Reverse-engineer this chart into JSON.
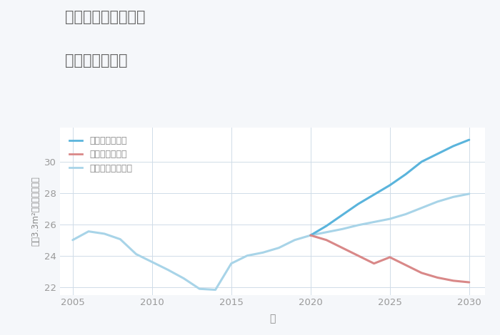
{
  "title_line1": "兵庫県宝塚市玉瀬の",
  "title_line2": "土地の価格推移",
  "xlabel": "年",
  "ylabel": "坪（3.3m²）単価（万円）",
  "background_color": "#f5f7fa",
  "plot_background": "#ffffff",
  "grid_color": "#d0dce8",
  "title_color": "#666666",
  "axis_color": "#888888",
  "tick_color": "#999999",
  "historical_years": [
    2005,
    2006,
    2007,
    2008,
    2009,
    2010,
    2011,
    2012,
    2013,
    2014,
    2015,
    2016,
    2017,
    2018,
    2019,
    2020
  ],
  "historical_values": [
    25.0,
    25.55,
    25.4,
    25.05,
    24.1,
    23.6,
    23.1,
    22.55,
    21.88,
    21.82,
    23.5,
    24.0,
    24.2,
    24.5,
    25.0,
    25.3
  ],
  "future_years": [
    2020,
    2021,
    2022,
    2023,
    2024,
    2025,
    2026,
    2027,
    2028,
    2029,
    2030
  ],
  "good_values": [
    25.3,
    25.9,
    26.6,
    27.3,
    27.9,
    28.5,
    29.2,
    30.0,
    30.5,
    31.0,
    31.4
  ],
  "bad_values": [
    25.3,
    25.0,
    24.5,
    24.0,
    23.5,
    23.9,
    23.4,
    22.9,
    22.6,
    22.4,
    22.3
  ],
  "normal_values": [
    25.3,
    25.5,
    25.7,
    25.95,
    26.15,
    26.35,
    26.65,
    27.05,
    27.45,
    27.75,
    27.95
  ],
  "good_color": "#5ab4dc",
  "bad_color": "#d98888",
  "normal_color": "#a8d4e8",
  "hist_color": "#a8d4e8",
  "legend_labels": [
    "グッドシナリオ",
    "バッドシナリオ",
    "ノーマルシナリオ"
  ],
  "ylim": [
    21.5,
    32.2
  ],
  "xlim": [
    2004.2,
    2031.0
  ],
  "yticks": [
    22,
    24,
    26,
    28,
    30
  ],
  "xticks": [
    2005,
    2010,
    2015,
    2020,
    2025,
    2030
  ]
}
